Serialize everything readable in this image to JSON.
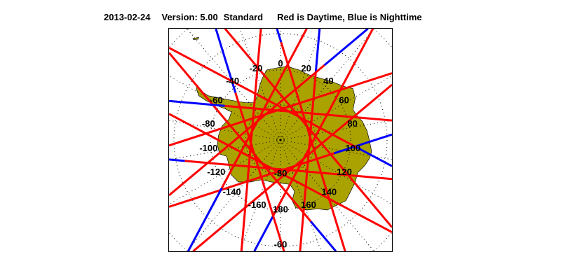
{
  "header": {
    "date": "2013-02-24",
    "version": "Version: 5.00",
    "mode": "Standard",
    "legend_text": "Red is Daytime, Blue is Nighttime"
  },
  "map": {
    "projection": "south polar stereographic",
    "land_color": "#aaa200",
    "day_color": "#ff0000",
    "night_color": "#0000ff",
    "longitude_labels": [
      "0",
      "20",
      "40",
      "60",
      "80",
      "100",
      "120",
      "140",
      "160",
      "180",
      "-160",
      "-140",
      "-120",
      "-100",
      "-80",
      "-60",
      "-40",
      "-20"
    ],
    "latitude_labels": [
      "-80",
      "-60"
    ]
  }
}
